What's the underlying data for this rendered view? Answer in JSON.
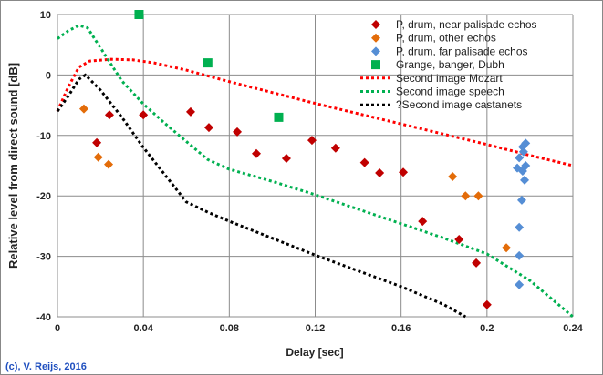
{
  "chart_data": {
    "type": "scatter",
    "xlabel": "Delay [sec]",
    "ylabel": "Relative level from direct sound [dB]",
    "xlim": [
      0,
      0.24
    ],
    "ylim": [
      -40,
      10
    ],
    "xticks": [
      "0",
      "0.04",
      "0.08",
      "0.12",
      "0.16",
      "0.2",
      "0.24"
    ],
    "yticks": [
      "10",
      "0",
      "-10",
      "-20",
      "-30",
      "-40"
    ],
    "grid": true,
    "legend_position": "top-right",
    "credit": "(c), V. Reijs, 2016",
    "series": [
      {
        "name": "P, drum, near palisade echos",
        "marker": "diamond",
        "color": "#c00000",
        "points": [
          [
            0.0242,
            -6.6
          ],
          [
            0.0183,
            -11.2
          ],
          [
            0.04,
            -6.6
          ],
          [
            0.062,
            -6.1
          ],
          [
            0.0705,
            -8.7
          ],
          [
            0.0837,
            -9.4
          ],
          [
            0.0926,
            -13.0
          ],
          [
            0.1066,
            -13.8
          ],
          [
            0.1185,
            -10.8
          ],
          [
            0.1295,
            -12.1
          ],
          [
            0.143,
            -14.5
          ],
          [
            0.15,
            -16.2
          ],
          [
            0.161,
            -16.1
          ],
          [
            0.17,
            -24.2
          ],
          [
            0.187,
            -27.2
          ],
          [
            0.195,
            -31.1
          ],
          [
            0.2,
            -38.0
          ]
        ]
      },
      {
        "name": "P, drum, other echos",
        "marker": "diamond",
        "color": "#e36c09",
        "points": [
          [
            0.0123,
            -5.6
          ],
          [
            0.019,
            -13.6
          ],
          [
            0.0238,
            -14.8
          ],
          [
            0.184,
            -16.8
          ],
          [
            0.19,
            -20.0
          ],
          [
            0.196,
            -20.0
          ],
          [
            0.209,
            -28.6
          ]
        ]
      },
      {
        "name": "P, drum, far palisade echos",
        "marker": "diamond",
        "color": "#558ed5",
        "points": [
          [
            0.218,
            -11.3
          ],
          [
            0.2166,
            -11.9
          ],
          [
            0.217,
            -12.7
          ],
          [
            0.215,
            -13.7
          ],
          [
            0.2141,
            -15.4
          ],
          [
            0.218,
            -15.0
          ],
          [
            0.2166,
            -15.9
          ],
          [
            0.2175,
            -17.4
          ],
          [
            0.2162,
            -20.7
          ],
          [
            0.215,
            -25.2
          ],
          [
            0.215,
            -29.9
          ],
          [
            0.215,
            -34.7
          ]
        ]
      },
      {
        "name": "Grange, banger, Dubh",
        "marker": "square",
        "color": "#00b050",
        "points": [
          [
            0.038,
            10
          ],
          [
            0.07,
            2
          ],
          [
            0.103,
            -7
          ]
        ]
      },
      {
        "name": "Second image Mozart",
        "marker": "dotted-line",
        "color": "#ff0000",
        "points": [
          [
            0,
            -6
          ],
          [
            0.005,
            -2
          ],
          [
            0.01,
            1.3
          ],
          [
            0.015,
            2.3
          ],
          [
            0.025,
            2.6
          ],
          [
            0.035,
            2.5
          ],
          [
            0.045,
            2.0
          ],
          [
            0.06,
            0.8
          ],
          [
            0.08,
            -1.1
          ],
          [
            0.1,
            -2.9
          ],
          [
            0.12,
            -4.7
          ],
          [
            0.14,
            -6.4
          ],
          [
            0.16,
            -8.1
          ],
          [
            0.18,
            -9.8
          ],
          [
            0.2,
            -11.5
          ],
          [
            0.22,
            -13.3
          ],
          [
            0.24,
            -15
          ]
        ]
      },
      {
        "name": "Second image speech",
        "marker": "dotted-line",
        "color": "#00b050",
        "points": [
          [
            0,
            6
          ],
          [
            0.005,
            7.3
          ],
          [
            0.01,
            8.2
          ],
          [
            0.014,
            7.8
          ],
          [
            0.02,
            4.5
          ],
          [
            0.03,
            -1
          ],
          [
            0.04,
            -4.8
          ],
          [
            0.05,
            -8
          ],
          [
            0.06,
            -11
          ],
          [
            0.07,
            -14
          ],
          [
            0.08,
            -15.6
          ],
          [
            0.1,
            -17.6
          ],
          [
            0.12,
            -19.8
          ],
          [
            0.14,
            -22.2
          ],
          [
            0.16,
            -24.6
          ],
          [
            0.18,
            -27
          ],
          [
            0.2,
            -29.6
          ],
          [
            0.22,
            -34
          ],
          [
            0.24,
            -40
          ]
        ]
      },
      {
        "name": "?Second image castanets",
        "marker": "dotted-line",
        "color": "#000000",
        "points": [
          [
            0,
            -6
          ],
          [
            0.005,
            -3.5
          ],
          [
            0.01,
            -0.7
          ],
          [
            0.013,
            0
          ],
          [
            0.02,
            -2.5
          ],
          [
            0.03,
            -7
          ],
          [
            0.04,
            -12
          ],
          [
            0.05,
            -16.5
          ],
          [
            0.06,
            -21
          ],
          [
            0.07,
            -22.7
          ],
          [
            0.08,
            -24.2
          ],
          [
            0.1,
            -27
          ],
          [
            0.12,
            -29.8
          ],
          [
            0.14,
            -32.4
          ],
          [
            0.16,
            -35
          ],
          [
            0.18,
            -38
          ],
          [
            0.19,
            -40
          ]
        ]
      }
    ]
  }
}
